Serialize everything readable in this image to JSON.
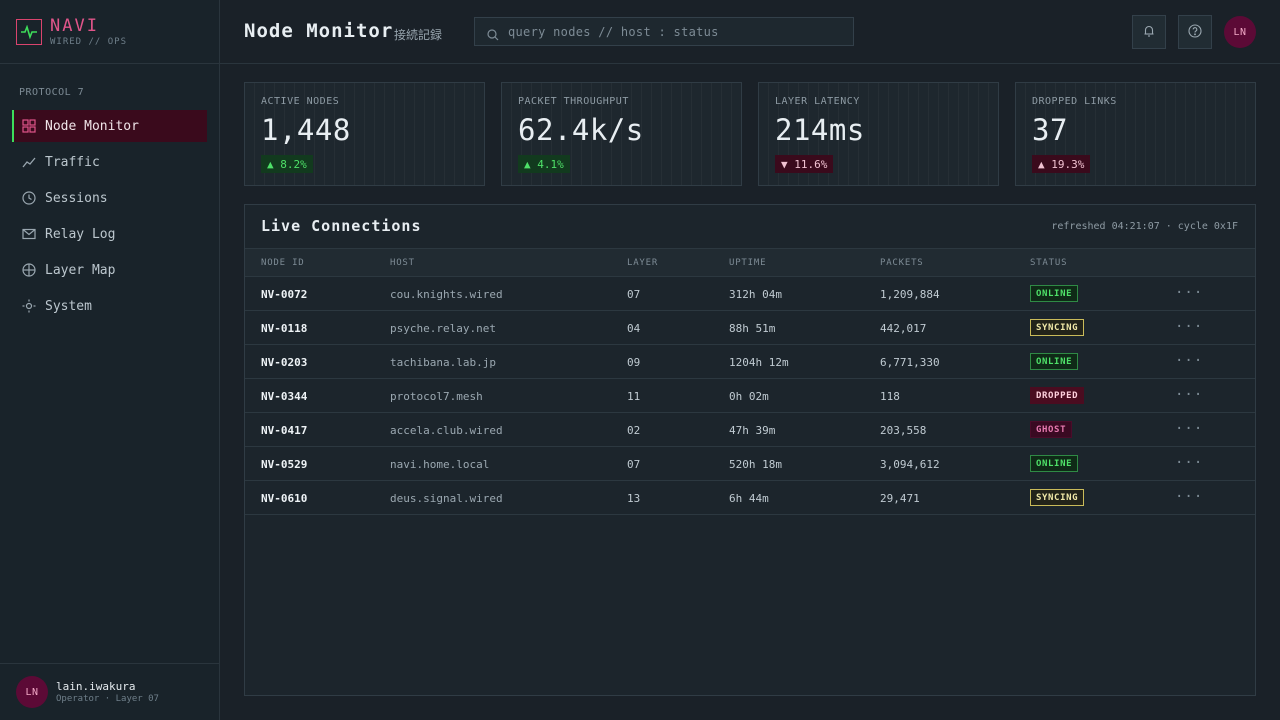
{
  "brand": {
    "name": "NAVI",
    "sub": "WIRED // OPS"
  },
  "sidebar": {
    "section": "PROTOCOL 7",
    "items": [
      {
        "label": "Node Monitor",
        "icon": "grid-icon",
        "active": true
      },
      {
        "label": "Traffic",
        "icon": "trend-icon"
      },
      {
        "label": "Sessions",
        "icon": "clock-icon"
      },
      {
        "label": "Relay Log",
        "icon": "mail-icon"
      },
      {
        "label": "Layer Map",
        "icon": "globe-icon"
      },
      {
        "label": "System",
        "icon": "gear-icon"
      }
    ]
  },
  "user": {
    "initials": "LN",
    "name": "lain.iwakura",
    "role": "Operator · Layer 07"
  },
  "header": {
    "title": "Node Monitor",
    "subtitle": "接続記録",
    "search_placeholder": "query nodes // host : status",
    "avatar_initials": "LN"
  },
  "stats": [
    {
      "label": "ACTIVE NODES",
      "value": "1,448",
      "delta": "▲ 8.2%",
      "trend": "up"
    },
    {
      "label": "PACKET THROUGHPUT",
      "value": "62.4k/s",
      "delta": "▲ 4.1%",
      "trend": "up"
    },
    {
      "label": "LAYER LATENCY",
      "value": "214ms",
      "delta": "▼ 11.6%",
      "trend": "down"
    },
    {
      "label": "DROPPED LINKS",
      "value": "37",
      "delta": "▲ 19.3%",
      "trend": "down"
    }
  ],
  "connections": {
    "title": "Live Connections",
    "meta": "refreshed 04:21:07 · cycle 0x1F",
    "columns": [
      "NODE ID",
      "HOST",
      "LAYER",
      "UPTIME",
      "PACKETS",
      "STATUS"
    ],
    "rows": [
      {
        "id": "NV-0072",
        "host": "cou.knights.wired",
        "layer": "07",
        "uptime": "312h 04m",
        "packets": "1,209,884",
        "status": "ONLINE"
      },
      {
        "id": "NV-0118",
        "host": "psyche.relay.net",
        "layer": "04",
        "uptime": "88h 51m",
        "packets": "442,017",
        "status": "SYNCING"
      },
      {
        "id": "NV-0203",
        "host": "tachibana.lab.jp",
        "layer": "09",
        "uptime": "1204h 12m",
        "packets": "6,771,330",
        "status": "ONLINE"
      },
      {
        "id": "NV-0344",
        "host": "protocol7.mesh",
        "layer": "11",
        "uptime": "0h 02m",
        "packets": "118",
        "status": "DROPPED"
      },
      {
        "id": "NV-0417",
        "host": "accela.club.wired",
        "layer": "02",
        "uptime": "47h 39m",
        "packets": "203,558",
        "status": "GHOST"
      },
      {
        "id": "NV-0529",
        "host": "navi.home.local",
        "layer": "07",
        "uptime": "520h 18m",
        "packets": "3,094,612",
        "status": "ONLINE"
      },
      {
        "id": "NV-0610",
        "host": "deus.signal.wired",
        "layer": "13",
        "uptime": "6h 44m",
        "packets": "29,471",
        "status": "SYNCING"
      }
    ],
    "row_menu": "···"
  }
}
